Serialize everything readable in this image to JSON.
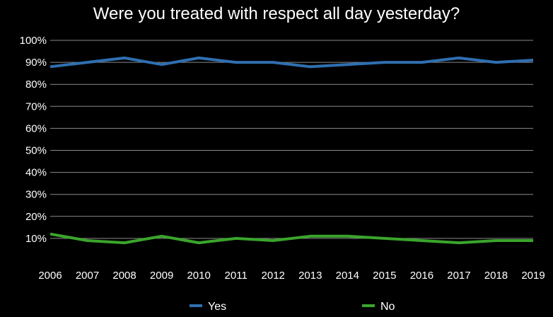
{
  "chart_data": {
    "type": "line",
    "title": "Were you treated with respect all day yesterday?",
    "xlabel": "",
    "ylabel": "",
    "x": [
      "2006",
      "2007",
      "2008",
      "2009",
      "2010",
      "2011",
      "2012",
      "2013",
      "2014",
      "2015",
      "2016",
      "2017",
      "2018",
      "2019"
    ],
    "y_ticks": [
      "10%",
      "20%",
      "30%",
      "40%",
      "50%",
      "60%",
      "70%",
      "80%",
      "90%",
      "100%"
    ],
    "y_tick_values": [
      10,
      20,
      30,
      40,
      50,
      60,
      70,
      80,
      90,
      100
    ],
    "ylim": [
      0,
      100
    ],
    "grid": true,
    "legend_position": "bottom",
    "series": [
      {
        "name": "Yes",
        "color": "#2f6fb0",
        "values": [
          88,
          90,
          92,
          89,
          92,
          90,
          90,
          88,
          89,
          90,
          90,
          92,
          90,
          91
        ]
      },
      {
        "name": "No",
        "color": "#3aa52b",
        "values": [
          12,
          9,
          8,
          11,
          8,
          10,
          9,
          11,
          11,
          10,
          9,
          8,
          9,
          9
        ]
      }
    ]
  }
}
